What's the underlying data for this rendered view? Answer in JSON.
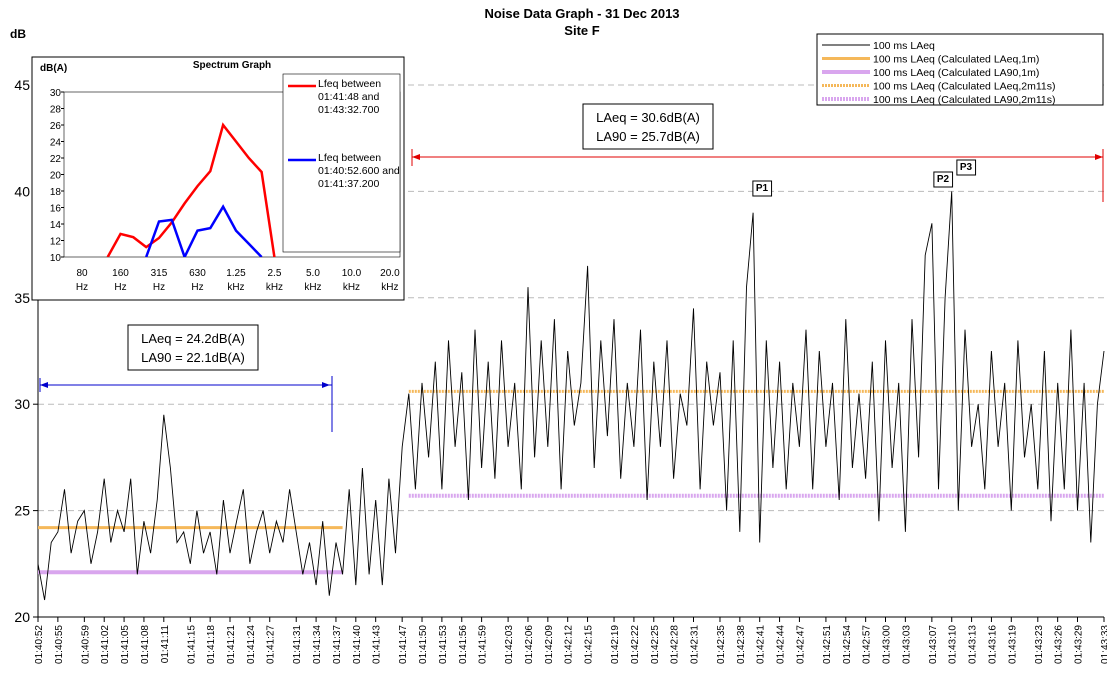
{
  "chart_data": [
    {
      "type": "line",
      "title": "Noise Data Graph - 31 Dec 2013",
      "subtitle": "Site F",
      "y_label": "dB",
      "xlim": [
        0,
        161
      ],
      "ylim": [
        20,
        45
      ],
      "yticks": [
        20,
        25,
        30,
        35,
        40,
        45
      ],
      "grid": true,
      "legend": "top-right",
      "xticks": [
        {
          "value": 0,
          "label": "01:40:52"
        },
        {
          "value": 3,
          "label": "01:40:55"
        },
        {
          "value": 7,
          "label": "01:40:59"
        },
        {
          "value": 10,
          "label": "01:41:02"
        },
        {
          "value": 13,
          "label": "01:41:05"
        },
        {
          "value": 16,
          "label": "01:41:08"
        },
        {
          "value": 19,
          "label": "01:41:11"
        },
        {
          "value": 23,
          "label": "01:41:15"
        },
        {
          "value": 26,
          "label": "01:41:18"
        },
        {
          "value": 29,
          "label": "01:41:21"
        },
        {
          "value": 32,
          "label": "01:41:24"
        },
        {
          "value": 35,
          "label": "01:41:27"
        },
        {
          "value": 39,
          "label": "01:41:31"
        },
        {
          "value": 42,
          "label": "01:41:34"
        },
        {
          "value": 45,
          "label": "01:41:37"
        },
        {
          "value": 48,
          "label": "01:41:40"
        },
        {
          "value": 51,
          "label": "01:41:43"
        },
        {
          "value": 55,
          "label": "01:41:47"
        },
        {
          "value": 58,
          "label": "01:41:50"
        },
        {
          "value": 61,
          "label": "01:41:53"
        },
        {
          "value": 64,
          "label": "01:41:56"
        },
        {
          "value": 67,
          "label": "01:41:59"
        },
        {
          "value": 71,
          "label": "01:42:03"
        },
        {
          "value": 74,
          "label": "01:42:06"
        },
        {
          "value": 77,
          "label": "01:42:09"
        },
        {
          "value": 80,
          "label": "01:42:12"
        },
        {
          "value": 83,
          "label": "01:42:15"
        },
        {
          "value": 87,
          "label": "01:42:19"
        },
        {
          "value": 90,
          "label": "01:42:22"
        },
        {
          "value": 93,
          "label": "01:42:25"
        },
        {
          "value": 96,
          "label": "01:42:28"
        },
        {
          "value": 99,
          "label": "01:42:31"
        },
        {
          "value": 103,
          "label": "01:42:35"
        },
        {
          "value": 106,
          "label": "01:42:38"
        },
        {
          "value": 109,
          "label": "01:42:41"
        },
        {
          "value": 112,
          "label": "01:42:44"
        },
        {
          "value": 115,
          "label": "01:42:47"
        },
        {
          "value": 119,
          "label": "01:42:51"
        },
        {
          "value": 122,
          "label": "01:42:54"
        },
        {
          "value": 125,
          "label": "01:42:57"
        },
        {
          "value": 128,
          "label": "01:43:00"
        },
        {
          "value": 131,
          "label": "01:43:03"
        },
        {
          "value": 135,
          "label": "01:43:07"
        },
        {
          "value": 138,
          "label": "01:43:10"
        },
        {
          "value": 141,
          "label": "01:43:13"
        },
        {
          "value": 144,
          "label": "01:43:16"
        },
        {
          "value": 147,
          "label": "01:43:19"
        },
        {
          "value": 151,
          "label": "01:43:23"
        },
        {
          "value": 154,
          "label": "01:43:26"
        },
        {
          "value": 157,
          "label": "01:43:29"
        },
        {
          "value": 161,
          "label": "01:43:33"
        }
      ],
      "x": [
        0,
        1,
        2,
        3,
        4,
        5,
        6,
        7,
        8,
        9,
        10,
        11,
        12,
        13,
        14,
        15,
        16,
        17,
        18,
        19,
        20,
        21,
        22,
        23,
        24,
        25,
        26,
        27,
        28,
        29,
        30,
        31,
        32,
        33,
        34,
        35,
        36,
        37,
        38,
        39,
        40,
        41,
        42,
        43,
        44,
        45,
        46,
        47,
        48,
        49,
        50,
        51,
        52,
        53,
        54,
        55,
        56,
        57,
        58,
        59,
        60,
        61,
        62,
        63,
        64,
        65,
        66,
        67,
        68,
        69,
        70,
        71,
        72,
        73,
        74,
        75,
        76,
        77,
        78,
        79,
        80,
        81,
        82,
        83,
        84,
        85,
        86,
        87,
        88,
        89,
        90,
        91,
        92,
        93,
        94,
        95,
        96,
        97,
        98,
        99,
        100,
        101,
        102,
        103,
        104,
        105,
        106,
        107,
        108,
        109,
        110,
        111,
        112,
        113,
        114,
        115,
        116,
        117,
        118,
        119,
        120,
        121,
        122,
        123,
        124,
        125,
        126,
        127,
        128,
        129,
        130,
        131,
        132,
        133,
        134,
        135,
        136,
        137,
        138,
        139,
        140,
        141,
        142,
        143,
        144,
        145,
        146,
        147,
        148,
        149,
        150,
        151,
        152,
        153,
        154,
        155,
        156,
        157,
        158,
        159,
        160,
        161
      ],
      "series": [
        {
          "name": "100 ms LAeq",
          "color": "#000000",
          "values": [
            22.5,
            20.8,
            23.5,
            24,
            26,
            23,
            24.5,
            25,
            22.5,
            24,
            26.5,
            23.5,
            25,
            24,
            26.5,
            22,
            24.5,
            23,
            25.5,
            29.5,
            27,
            23.5,
            24,
            22.5,
            25,
            23,
            24,
            22,
            25.5,
            23,
            24.5,
            26,
            22.5,
            24,
            25,
            23,
            24.5,
            23.5,
            26,
            24,
            22,
            23.5,
            21.5,
            24.5,
            21,
            23.5,
            22,
            26,
            21.5,
            27,
            22,
            25.5,
            21.5,
            26.5,
            23,
            28,
            30.5,
            26,
            31,
            27.5,
            32,
            26,
            33,
            28,
            31.5,
            25.5,
            33.5,
            27,
            32,
            26.5,
            33,
            28,
            31,
            26,
            35.5,
            27.5,
            33,
            28,
            34,
            26,
            32.5,
            29,
            31,
            36.5,
            27,
            33,
            28.5,
            34,
            26.5,
            31,
            28,
            33.5,
            25.5,
            32,
            28,
            33,
            26.5,
            30.5,
            29,
            34.5,
            26,
            32,
            29,
            31.5,
            25,
            33,
            24,
            35.5,
            39,
            23.5,
            33,
            27,
            32,
            26,
            31,
            28,
            33.5,
            26,
            32.5,
            28,
            31,
            25.5,
            34,
            27,
            30.5,
            26.5,
            32,
            24.5,
            33,
            27,
            31,
            24,
            34,
            27.5,
            37,
            38.5,
            26,
            35,
            40,
            25,
            33.5,
            28,
            30,
            26,
            32.5,
            28,
            31,
            25,
            33,
            27.5,
            30,
            26,
            32.5,
            24.5,
            31,
            26,
            33.5,
            25,
            31,
            23.5,
            30,
            32.5
          ]
        },
        {
          "name": "100 ms LAeq (Calculated LAeq,1m)",
          "color": "#f5b85a",
          "value": 24.2,
          "range": [
            0,
            46
          ]
        },
        {
          "name": "100 ms LAeq (Calculated LA90,1m)",
          "color": "#d9a6ee",
          "value": 22.1,
          "range": [
            0,
            46
          ]
        },
        {
          "name": "100 ms LAeq (Calculated LAeq,2m11s)",
          "color": "#f5b85a",
          "value": 30.6,
          "range": [
            56,
            161
          ],
          "dashed": true
        },
        {
          "name": "100 ms LAeq (Calculated LA90,2m11s)",
          "color": "#d9a6ee",
          "value": 25.7,
          "range": [
            56,
            161
          ],
          "dashed": true
        }
      ],
      "annotations": [
        "P1",
        "P2",
        "P3"
      ],
      "notes": [
        [
          "LAeq = 24.2dB(A)",
          "LA90 = 22.1dB(A)"
        ],
        [
          "LAeq = 30.6dB(A)",
          "LA90 = 25.7dB(A)"
        ]
      ]
    },
    {
      "type": "line",
      "title": "Spectrum Graph",
      "y_label": "dB(A)",
      "ylim": [
        10,
        30
      ],
      "yticks": [
        10,
        12,
        14,
        16,
        18,
        20,
        22,
        24,
        26,
        28,
        30
      ],
      "categories": [
        "80 Hz",
        null,
        null,
        "160 Hz",
        null,
        null,
        "315 Hz",
        null,
        null,
        "630 Hz",
        null,
        null,
        "1.25 kHz",
        null,
        null,
        "2.5 kHz",
        null,
        null,
        "5.0 kHz",
        null,
        null,
        "10.0 kHz",
        null,
        null,
        "20.0 kHz"
      ],
      "series": [
        {
          "name": "Lfeq between 01:41:48 and 01:43:32.700",
          "color": "#ff0000",
          "values": [
            null,
            null,
            10,
            12.8,
            12.4,
            11.2,
            12.3,
            14.2,
            16.5,
            18.6,
            20.4,
            26,
            24,
            22,
            20.3,
            10,
            null,
            null,
            null,
            null,
            null,
            null,
            null,
            null,
            null
          ]
        },
        {
          "name": "Lfeq between 01:40:52.600 and 01:41:37.200",
          "color": "#0000ff",
          "values": [
            null,
            null,
            null,
            null,
            null,
            10,
            14.3,
            14.5,
            10,
            13.2,
            13.5,
            16.1,
            13.2,
            11.6,
            10,
            null,
            null,
            null,
            null,
            null,
            null,
            null,
            null,
            null,
            null
          ]
        }
      ]
    }
  ]
}
